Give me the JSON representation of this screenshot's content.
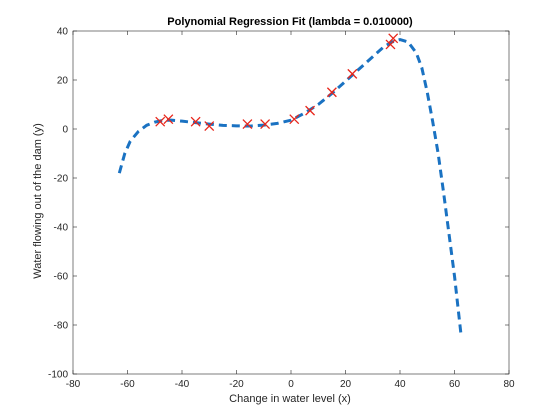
{
  "chart_data": {
    "type": "scatter",
    "title": "Polynomial Regression Fit (lambda = 0.010000)",
    "xlabel": "Change in water level (x)",
    "ylabel": "Water flowing out of the dam (y)",
    "xlim": [
      -80,
      80
    ],
    "ylim": [
      -100,
      40
    ],
    "xticks": [
      -80,
      -60,
      -40,
      -20,
      0,
      20,
      40,
      60,
      80
    ],
    "yticks": [
      -100,
      -80,
      -60,
      -40,
      -20,
      0,
      20,
      40
    ],
    "grid": false,
    "legend": "none",
    "series": [
      {
        "kind": "scatter",
        "marker": "x",
        "color": "#e8261b",
        "points": [
          [
            -48,
            3
          ],
          [
            -45,
            4
          ],
          [
            -35,
            3
          ],
          [
            -30,
            1.2
          ],
          [
            -16,
            2
          ],
          [
            -9.5,
            2
          ],
          [
            1.2,
            4
          ],
          [
            7,
            7.5
          ],
          [
            15,
            15
          ],
          [
            22.5,
            22.5
          ],
          [
            36.5,
            34.5
          ],
          [
            37.5,
            37
          ]
        ]
      },
      {
        "kind": "line",
        "style": "dashed",
        "color": "#1a72c2",
        "points": [
          [
            -63,
            -18
          ],
          [
            -61,
            -10
          ],
          [
            -59,
            -5
          ],
          [
            -56,
            -1
          ],
          [
            -53,
            1.5
          ],
          [
            -50,
            2.8
          ],
          [
            -47,
            3.5
          ],
          [
            -44,
            3.6
          ],
          [
            -40,
            3.2
          ],
          [
            -35,
            2.6
          ],
          [
            -30,
            2.0
          ],
          [
            -25,
            1.5
          ],
          [
            -20,
            1.3
          ],
          [
            -15,
            1.2
          ],
          [
            -10,
            1.6
          ],
          [
            -5,
            2.3
          ],
          [
            0,
            3.6
          ],
          [
            5,
            6.5
          ],
          [
            10,
            10
          ],
          [
            15,
            14.5
          ],
          [
            20,
            19.5
          ],
          [
            25,
            24.5
          ],
          [
            30,
            29.5
          ],
          [
            34,
            33.5
          ],
          [
            37,
            35.5
          ],
          [
            40,
            36.5
          ],
          [
            43,
            35.5
          ],
          [
            46,
            31
          ],
          [
            48,
            25
          ],
          [
            50,
            15
          ],
          [
            52,
            3
          ],
          [
            54,
            -10
          ],
          [
            56,
            -26
          ],
          [
            58,
            -43
          ],
          [
            60,
            -60
          ],
          [
            61,
            -70
          ],
          [
            62,
            -80
          ],
          [
            62.5,
            -85
          ]
        ]
      }
    ]
  }
}
